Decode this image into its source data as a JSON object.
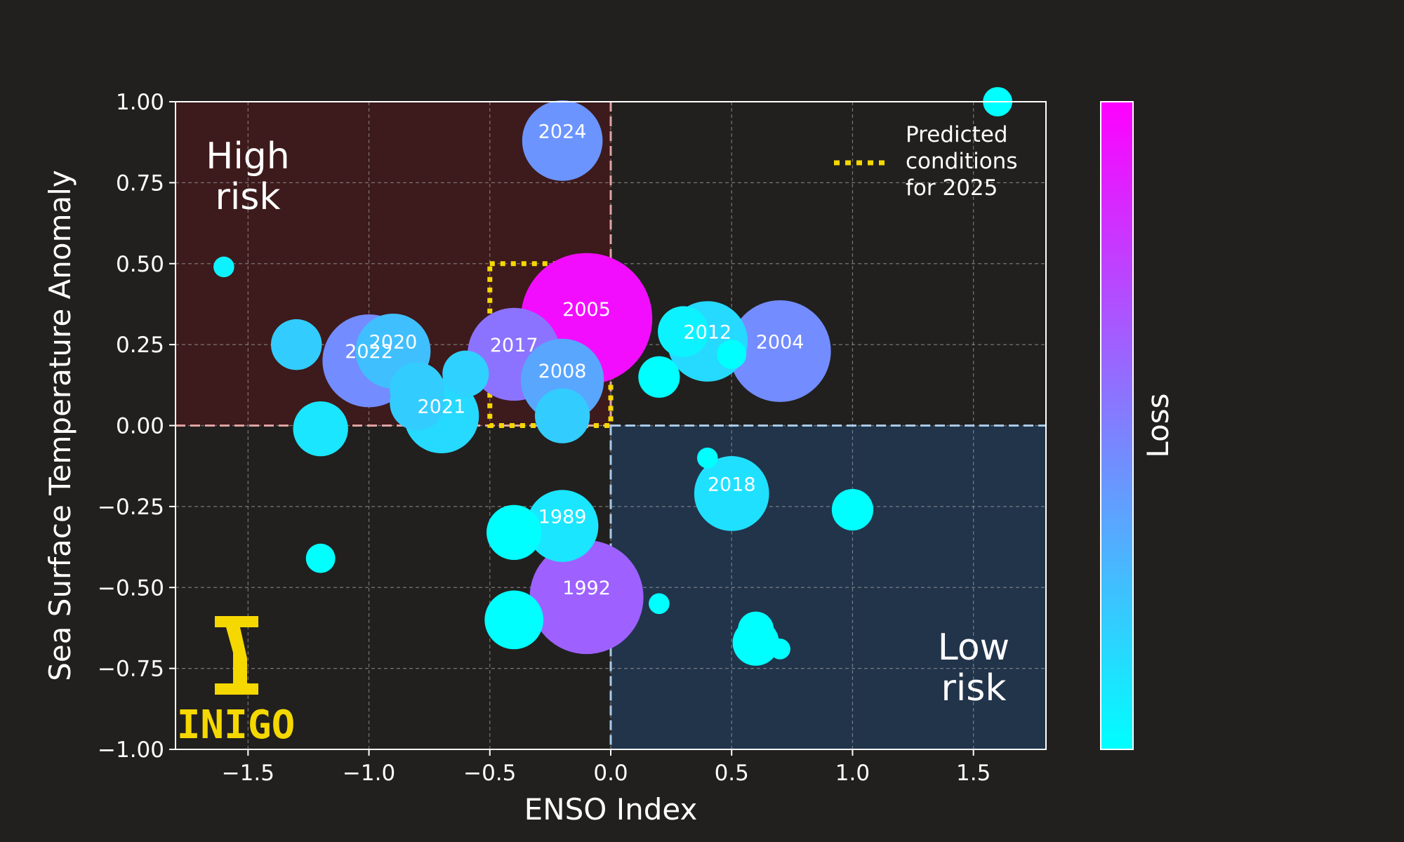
{
  "chart_data": {
    "type": "scatter",
    "title": "",
    "xlabel": "ENSO Index",
    "ylabel": "Sea Surface Temperature Anomaly",
    "xlim": [
      -1.8,
      1.8
    ],
    "ylim": [
      -1.0,
      1.0
    ],
    "xticks": [
      -1.5,
      -1.0,
      -0.5,
      0.0,
      0.5,
      1.0,
      1.5
    ],
    "xtick_labels": [
      "−1.5",
      "−1.0",
      "−0.5",
      "0.0",
      "0.5",
      "1.0",
      "1.5"
    ],
    "yticks": [
      1.0,
      0.75,
      0.5,
      0.25,
      0.0,
      -0.25,
      -0.5,
      -0.75,
      -1.0
    ],
    "ytick_labels": [
      "1.00",
      "0.75",
      "0.50",
      "0.25",
      "0.00",
      "−0.25",
      "−0.50",
      "−0.75",
      "−1.00"
    ],
    "grid": true,
    "colorbar": {
      "label": "Loss",
      "color_low": "#00ffff",
      "color_high": "#ff00ff"
    },
    "zones": [
      {
        "label_lines": [
          "High",
          "risk"
        ],
        "x_range": [
          -1.8,
          0.0
        ],
        "y_range": [
          0.0,
          1.0
        ],
        "color": "#3d1a1b",
        "line_color": "#e0a3a3"
      },
      {
        "label_lines": [
          "Low",
          "risk"
        ],
        "x_range": [
          0.0,
          1.8
        ],
        "y_range": [
          -1.0,
          0.0
        ],
        "color": "#21344a",
        "line_color": "#a9c9e6"
      }
    ],
    "predicted_region": {
      "x_range": [
        -0.5,
        0.0
      ],
      "y_range": [
        0.0,
        0.5
      ],
      "color": "#f5d800"
    },
    "legend": {
      "position": "top-right",
      "entries": [
        "Predicted",
        "conditions",
        "for 2025"
      ]
    },
    "points": [
      {
        "x": -0.2,
        "y": 0.88,
        "size": 0.15,
        "loss": 0.42,
        "label": "2024"
      },
      {
        "x": -0.1,
        "y": 0.33,
        "size": 0.4,
        "loss": 0.95,
        "label": "2005"
      },
      {
        "x": -0.4,
        "y": 0.22,
        "size": 0.2,
        "loss": 0.55,
        "label": "2017"
      },
      {
        "x": -0.2,
        "y": 0.14,
        "size": 0.16,
        "loss": 0.35,
        "label": "2008"
      },
      {
        "x": -1.0,
        "y": 0.2,
        "size": 0.2,
        "loss": 0.45,
        "label": "2022"
      },
      {
        "x": -0.9,
        "y": 0.23,
        "size": 0.13,
        "loss": 0.25,
        "label": "2020"
      },
      {
        "x": -0.7,
        "y": 0.03,
        "size": 0.13,
        "loss": 0.15,
        "label": "2021"
      },
      {
        "x": 0.4,
        "y": 0.26,
        "size": 0.15,
        "loss": 0.15,
        "label": "2012"
      },
      {
        "x": 0.7,
        "y": 0.23,
        "size": 0.24,
        "loss": 0.45,
        "label": "2004"
      },
      {
        "x": 0.5,
        "y": -0.21,
        "size": 0.13,
        "loss": 0.12,
        "label": "2018"
      },
      {
        "x": -0.2,
        "y": -0.31,
        "size": 0.12,
        "loss": 0.1,
        "label": "1989"
      },
      {
        "x": -0.1,
        "y": -0.53,
        "size": 0.3,
        "loss": 0.62,
        "label": "1992"
      },
      {
        "x": -1.3,
        "y": 0.25,
        "size": 0.06,
        "loss": 0.2,
        "label": ""
      },
      {
        "x": -0.8,
        "y": 0.11,
        "size": 0.07,
        "loss": 0.2,
        "label": ""
      },
      {
        "x": -0.8,
        "y": 0.07,
        "size": 0.07,
        "loss": 0.2,
        "label": ""
      },
      {
        "x": -0.6,
        "y": 0.16,
        "size": 0.05,
        "loss": 0.18,
        "label": ""
      },
      {
        "x": -0.2,
        "y": 0.03,
        "size": 0.07,
        "loss": 0.2,
        "label": ""
      },
      {
        "x": -1.2,
        "y": -0.01,
        "size": 0.07,
        "loss": 0.1,
        "label": ""
      },
      {
        "x": -1.6,
        "y": 0.49,
        "size": 0.01,
        "loss": 0.05,
        "label": ""
      },
      {
        "x": -1.2,
        "y": -0.41,
        "size": 0.02,
        "loss": 0.0,
        "label": ""
      },
      {
        "x": -0.4,
        "y": -0.33,
        "size": 0.07,
        "loss": 0.0,
        "label": ""
      },
      {
        "x": -0.4,
        "y": -0.6,
        "size": 0.08,
        "loss": 0.0,
        "label": ""
      },
      {
        "x": 0.2,
        "y": 0.15,
        "size": 0.04,
        "loss": 0.0,
        "label": ""
      },
      {
        "x": 0.3,
        "y": 0.29,
        "size": 0.06,
        "loss": 0.05,
        "label": ""
      },
      {
        "x": 0.5,
        "y": 0.22,
        "size": 0.02,
        "loss": 0.0,
        "label": ""
      },
      {
        "x": 0.4,
        "y": -0.1,
        "size": 0.01,
        "loss": 0.0,
        "label": ""
      },
      {
        "x": 0.2,
        "y": -0.55,
        "size": 0.01,
        "loss": 0.0,
        "label": ""
      },
      {
        "x": 0.6,
        "y": -0.63,
        "size": 0.03,
        "loss": 0.0,
        "label": ""
      },
      {
        "x": 0.6,
        "y": -0.67,
        "size": 0.05,
        "loss": 0.0,
        "label": ""
      },
      {
        "x": 0.7,
        "y": -0.69,
        "size": 0.01,
        "loss": 0.0,
        "label": ""
      },
      {
        "x": 1.0,
        "y": -0.26,
        "size": 0.04,
        "loss": 0.0,
        "label": ""
      },
      {
        "x": 1.6,
        "y": 1.0,
        "size": 0.02,
        "loss": 0.0,
        "label": ""
      }
    ]
  },
  "logo": {
    "text": "INIGO",
    "color": "#f5d800"
  }
}
